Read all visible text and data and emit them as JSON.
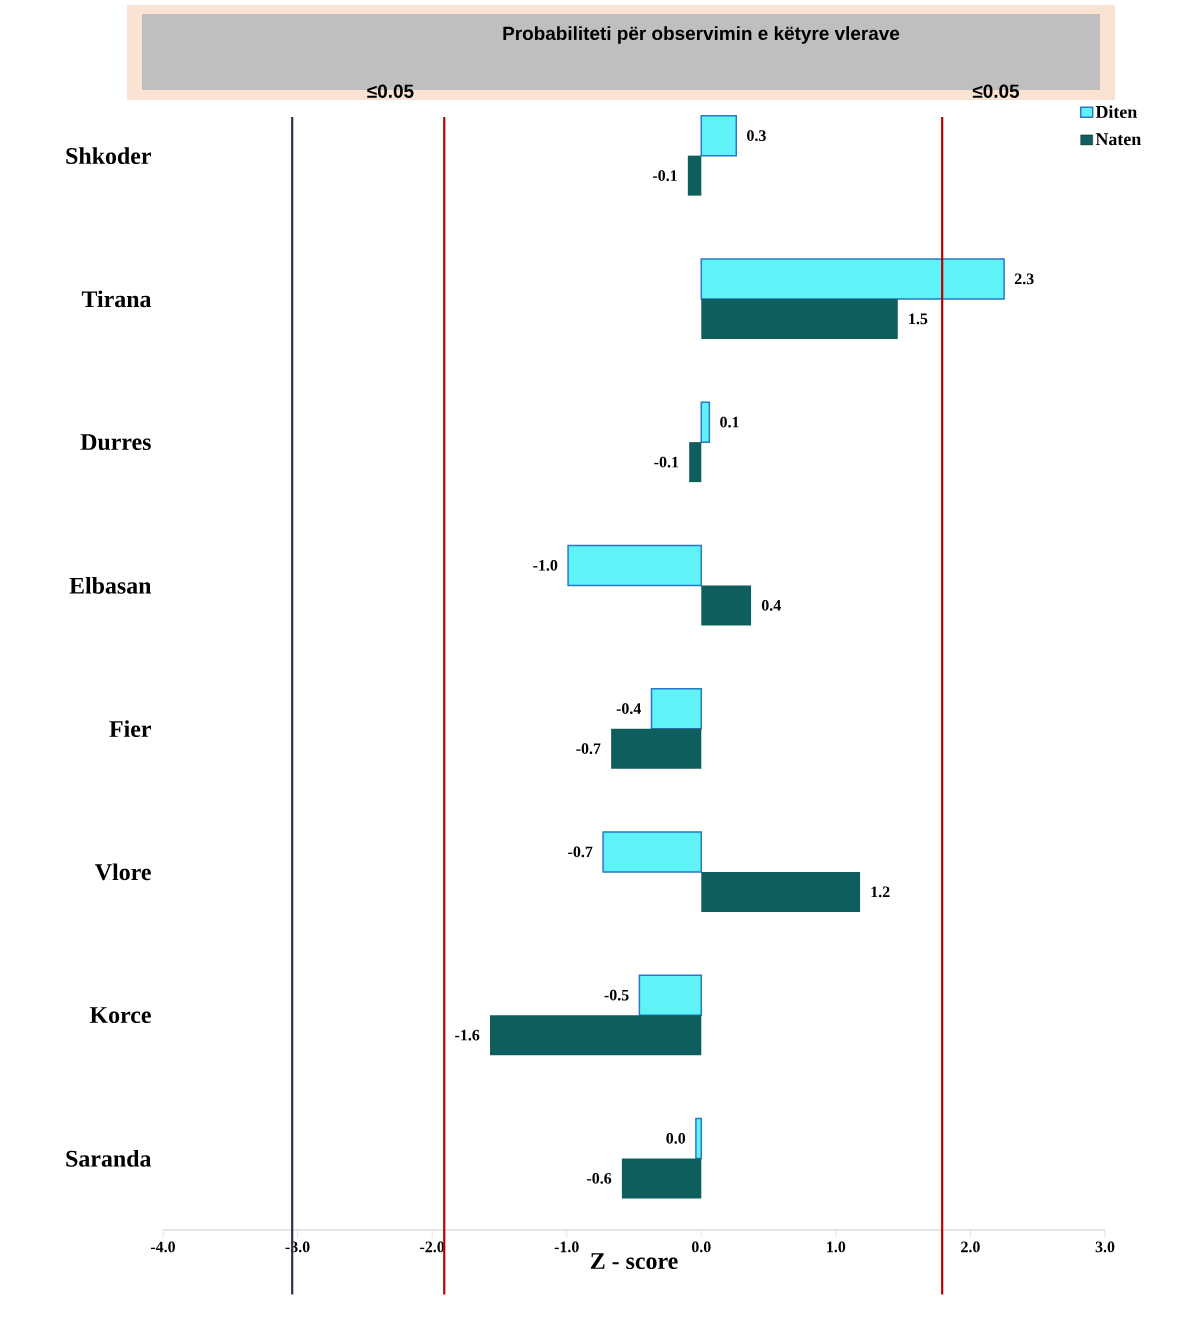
{
  "chart_data": {
    "type": "bar",
    "orientation": "horizontal",
    "title": "Probabiliteti për observimin e këtyre vlerave",
    "xlabel": "Z - score",
    "categories": [
      "Shkoder",
      "Tirana",
      "Durres",
      "Elbasan",
      "Fier",
      "Vlore",
      "Korce",
      "Saranda"
    ],
    "series": [
      {
        "name": "Diten",
        "color": "#5ff2f7",
        "values": [
          0.26,
          2.25,
          0.06,
          -0.99,
          -0.37,
          -0.73,
          -0.46,
          -0.04
        ],
        "value_labels": [
          "0.3",
          "2.3",
          "0.1",
          "-1.0",
          "-0.4",
          "-0.7",
          "-0.5",
          "0.0"
        ]
      },
      {
        "name": "Naten",
        "color": "#0e5e5e",
        "values": [
          -0.1,
          1.46,
          -0.09,
          0.37,
          -0.67,
          1.18,
          -1.57,
          -0.59
        ],
        "value_labels": [
          "-0.1",
          "1.5",
          "-0.1",
          "0.4",
          "-0.7",
          "1.2",
          "-1.6",
          "-0.6"
        ]
      }
    ],
    "xlim": [
      -4,
      3
    ],
    "xticks": [
      {
        "value": -4,
        "label": "-4.0"
      },
      {
        "value": -3,
        "label": "-3.0"
      },
      {
        "value": -2,
        "label": "-2.0"
      },
      {
        "value": -1,
        "label": "-1.0"
      },
      {
        "value": 0,
        "label": "0.0"
      },
      {
        "value": 1,
        "label": "1.0"
      },
      {
        "value": 2,
        "label": "2.0"
      },
      {
        "value": 3,
        "label": "3.0"
      }
    ],
    "ref_lines": [
      {
        "axis": "x",
        "value": -3.04,
        "color": "#3b2a4a"
      },
      {
        "axis": "x",
        "value": -1.91,
        "label": "≤0.05",
        "color": "#c00000"
      },
      {
        "axis": "x",
        "value": 1.79,
        "label": "≤0.05",
        "color": "#c00000"
      }
    ],
    "grid": false,
    "legend": "top right"
  }
}
